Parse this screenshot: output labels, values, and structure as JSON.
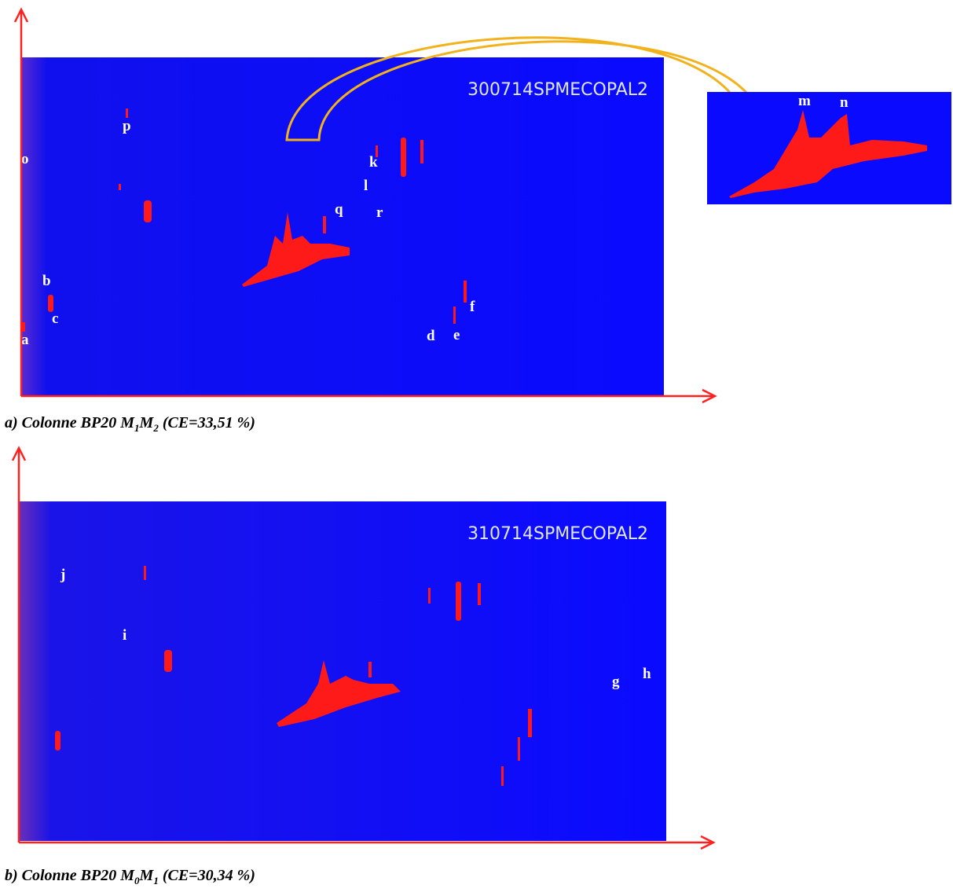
{
  "figure": {
    "panels": [
      {
        "sample": "300714SPMECOPAL2",
        "labels": [
          "a",
          "b",
          "c",
          "d",
          "e",
          "f",
          "k",
          "l",
          "o",
          "p",
          "q",
          "r"
        ],
        "inset_labels": [
          "m",
          "n"
        ],
        "caption": {
          "prefix": "a) Colonne BP20 M",
          "sub1": "1",
          "mid": "M",
          "sub2": "2",
          "suffix": " (CE=33,51 %)"
        }
      },
      {
        "sample": "310714SPMECOPAL2",
        "labels": [
          "g",
          "h",
          "i",
          "j"
        ],
        "caption": {
          "prefix": "b) Colonne BP20 M",
          "sub1": "0",
          "mid": "M",
          "sub2": "1",
          "suffix": " (CE=30,34 %)"
        }
      }
    ]
  }
}
